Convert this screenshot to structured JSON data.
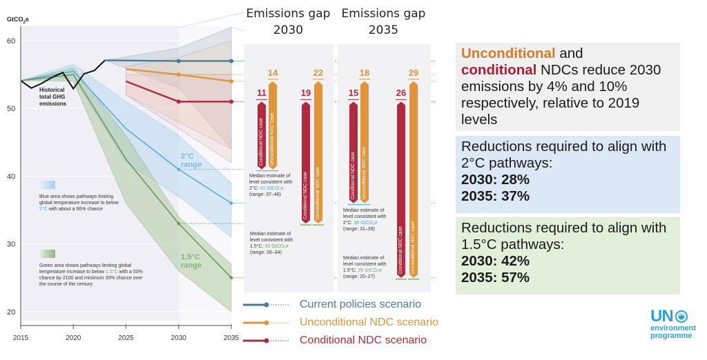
{
  "chart_data": {
    "type": "line",
    "ylabel": "GtCO₂e",
    "ylim": [
      18,
      62
    ],
    "xlim": [
      2015,
      2035
    ],
    "yticks": [
      60,
      50,
      40,
      30,
      20
    ],
    "xticks": [
      2015,
      2020,
      2025,
      2030,
      2035
    ],
    "historical": {
      "name": "Historical total GHG emissions",
      "x": [
        2015,
        2016,
        2017,
        2018,
        2019,
        2020,
        2021,
        2022,
        2023
      ],
      "y": [
        54.1,
        53.0,
        53.7,
        54.6,
        55.3,
        52.9,
        55.1,
        55.6,
        57.1
      ]
    },
    "series": [
      {
        "name": "Current policies scenario",
        "color": "#4a7a96",
        "x": [
          2023,
          2030,
          2035
        ],
        "y": [
          57.1,
          57.0,
          57.0
        ],
        "range_low": [
          57.1,
          53.0,
          44.0
        ],
        "range_high": [
          57.1,
          58.9,
          62.0
        ]
      },
      {
        "name": "Unconditional NDC scenario",
        "color": "#e0953a",
        "x": [
          2025,
          2030,
          2035
        ],
        "y": [
          55.8,
          55.0,
          54.0
        ],
        "range_low": [
          52.0,
          48.0,
          44.0
        ],
        "range_high": [
          56.2,
          57.5,
          60.0
        ]
      },
      {
        "name": "Conditional NDC scenario",
        "color": "#b02a3f",
        "x": [
          2025,
          2030,
          2035
        ],
        "y": [
          54.0,
          51.0,
          51.0
        ],
        "range_low": [
          52.0,
          47.0,
          42.0
        ],
        "range_high": [
          55.0,
          55.0,
          55.0
        ]
      }
    ],
    "pathways": [
      {
        "name": "2°C range",
        "color": "#5aaede",
        "x": [
          2015,
          2020,
          2025,
          2030,
          2035
        ],
        "y": [
          54.1,
          55.5,
          47.0,
          41.0,
          36.0
        ],
        "low": [
          54.1,
          54.5,
          42.0,
          37.0,
          31.0
        ],
        "high": [
          54.1,
          56.5,
          51.0,
          46.0,
          39.0
        ]
      },
      {
        "name": "1.5°C range",
        "color": "#6a9a5a",
        "x": [
          2015,
          2020,
          2025,
          2030,
          2035
        ],
        "y": [
          54.1,
          55.0,
          42.5,
          33.0,
          25.0
        ],
        "low": [
          54.1,
          54.0,
          36.0,
          26.0,
          20.0
        ],
        "high": [
          54.1,
          56.0,
          46.0,
          34.0,
          27.0
        ]
      }
    ],
    "gaps": [
      {
        "year": 2030,
        "vs": "2°C",
        "conditional": 11,
        "unconditional": 14
      },
      {
        "year": 2030,
        "vs": "1.5°C",
        "conditional": 19,
        "unconditional": 22
      },
      {
        "year": 2035,
        "vs": "2°C",
        "conditional": 15,
        "unconditional": 18
      },
      {
        "year": 2035,
        "vs": "1.5°C",
        "conditional": 26,
        "unconditional": 29
      }
    ]
  },
  "axis": {
    "y_unit_main": "GtCO",
    "y_unit_sub": "2",
    "y_unit_end": "e",
    "yticks": [
      "60",
      "50",
      "40",
      "30",
      "20"
    ],
    "xticks": [
      "2015",
      "2020",
      "2025",
      "2030",
      "2035"
    ]
  },
  "annotations": {
    "historical": [
      "Historical",
      "total GHG",
      "emissions"
    ],
    "range_2c": [
      "2°C",
      "range"
    ],
    "range_15c": [
      "1.5°C",
      "range"
    ],
    "blue_note_pre": "Blue area shows pathways limiting global temperature increase to below ",
    "blue_note_hl": "2°C",
    "blue_note_post": " with about a 66% chance",
    "green_note_pre": "Green area shows pathways limiting global temperature increase to below ",
    "green_note_hl": "1.5°C",
    "green_note_post": " with a 50% chance by 2100 and minimum 33% chance over the course of the century"
  },
  "gap_panels": [
    {
      "title1": "Emissions gap",
      "title2": "2030",
      "values": [
        "11",
        "14",
        "19",
        "22"
      ],
      "cond_label": "Conditional NDC case",
      "uncond_label": "Unconditional NDC case",
      "median_2c": {
        "l1": "Median estimate of",
        "l2": "level consistent with",
        "pre": "2°C: ",
        "val": "41 GtCO₂e",
        "range": "(range: 37–46)"
      },
      "median_15c": {
        "l1": "Median estimate of",
        "l2": "level consistent with",
        "pre": "1.5°C: ",
        "val": "33 GtCO₂e",
        "range": "(range: 26–34)"
      }
    },
    {
      "title1": "Emissions gap",
      "title2": "2035",
      "values": [
        "15",
        "18",
        "26",
        "29"
      ],
      "cond_label": "Conditional NDC case",
      "uncond_label": "Unconditional NDC case",
      "median_2c": {
        "l1": "Median estimate of",
        "l2": "level consistent with",
        "pre": "2°C: ",
        "val": "36 GtCO₂e",
        "range": "(range: 31–39)"
      },
      "median_15c": {
        "l1": "Median estimate of",
        "l2": "level consistent with",
        "pre": "1.5°C: ",
        "val": "25 GtCO₂e",
        "range": "(range: 20–27)"
      }
    }
  ],
  "legend": [
    {
      "label": "Current policies scenario",
      "color": "#4a7a96"
    },
    {
      "label": "Unconditional NDC scenario",
      "color": "#e0953a"
    },
    {
      "label": "Conditional NDC scenario",
      "color": "#b02a3f"
    }
  ],
  "boxes": {
    "ndc": {
      "w1": "Unconditional",
      "w1_color": "#d97a2a",
      "t1": " and",
      "w2": "conditional",
      "w2_color": "#b01c35",
      "t2": " NDCs reduce 2030 emissions by 4% and 10% respectively, relative to 2019 levels",
      "bg": "#f0f0f0"
    },
    "c2": {
      "l1": "Reductions required to align with 2°C pathways:",
      "y1": "2030: 28%",
      "y2": "2035: 37%",
      "bg": "#dde8f6"
    },
    "c15": {
      "l1": "Reductions required to align with 1.5°C pathways:",
      "y1": "2030: 42%",
      "y2": "2035: 57%",
      "bg": "#e3eedb"
    }
  },
  "logo": {
    "un": "UN",
    "line1": "environment",
    "line2": "programme"
  },
  "colors": {
    "current": "#4a7a96",
    "uncond": "#e0953a",
    "cond": "#b02a3f",
    "blue": "#5aaede",
    "green": "#6a9a5a"
  }
}
